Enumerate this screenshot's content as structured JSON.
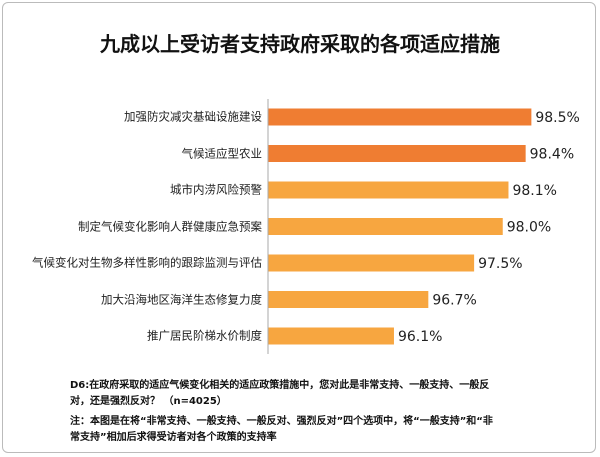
{
  "chart_data": {
    "type": "barh",
    "title": "九成以上受访者支持政府采取的各项适应措施",
    "categories": [
      "加强防灾减灾基础设施建设",
      "气候适应型农业",
      "城市内涝风险预警",
      "制定气候变化影响人群健康应急预案",
      "气候变化对生物多样性影响的跟踪监测与评估",
      "加大沿海地区海洋生态修复力度",
      "推广居民阶梯水价制度"
    ],
    "values": [
      98.5,
      98.4,
      98.1,
      98.0,
      97.5,
      96.7,
      96.1
    ],
    "value_labels": [
      "98.5%",
      "98.4%",
      "98.1%",
      "98.0%",
      "97.5%",
      "96.7%",
      "96.1%"
    ],
    "colors": [
      "#ef7d32",
      "#ef7d32",
      "#f7a640",
      "#f7a640",
      "#f7a640",
      "#f7a640",
      "#f7a640"
    ],
    "xlim": [
      93.9,
      99
    ],
    "question": "D6:在政府采取的适应气候变化相关的适应政策措施中，您对此是非常支持、一般支持、一般反对，还是强烈反对？ （n=4025）",
    "note": "注：本图是在将“非常支持、一般支持、一般反对、强烈反对”四个选项中，将“一般支持”和“非常支持”相加后求得受访者对各个政策的支持率"
  }
}
